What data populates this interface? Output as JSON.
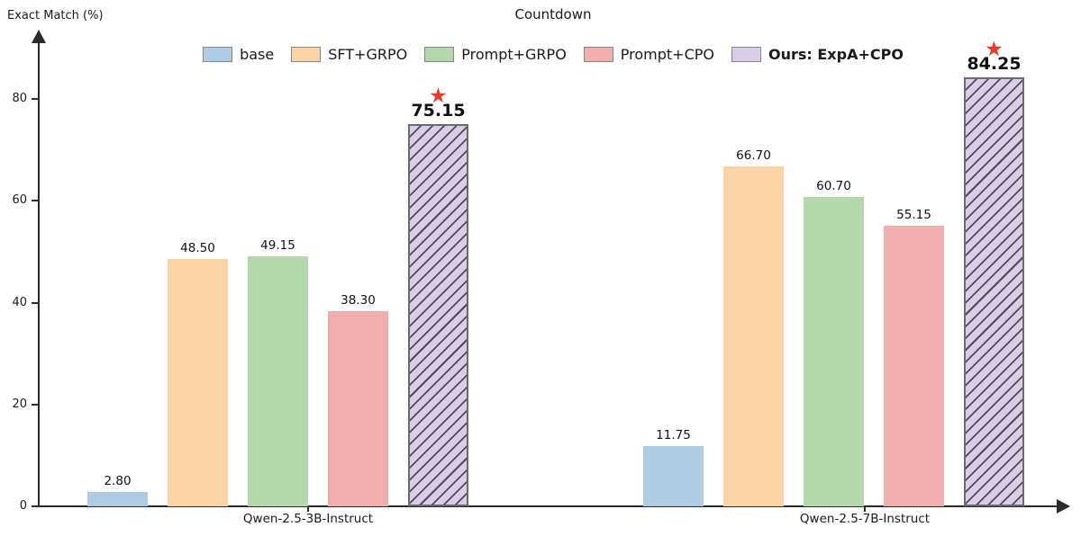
{
  "chart_data": {
    "type": "bar",
    "title": "Countdown",
    "ylabel": "Exact Match (%)",
    "categories": [
      "Qwen-2.5-3B-Instruct",
      "Qwen-2.5-7B-Instruct"
    ],
    "series": [
      {
        "name": "base",
        "color": "#aecde4",
        "values": [
          2.8,
          11.75
        ],
        "highlight": false
      },
      {
        "name": "SFT+GRPO",
        "color": "#fbd3a4",
        "values": [
          48.5,
          66.7
        ],
        "highlight": false
      },
      {
        "name": "Prompt+GRPO",
        "color": "#b2d8ab",
        "values": [
          49.15,
          60.7
        ],
        "highlight": false
      },
      {
        "name": "Prompt+CPO",
        "color": "#f0aeac",
        "values": [
          38.3,
          55.15
        ],
        "highlight": false
      },
      {
        "name": "Ours: ExpA+CPO",
        "color": "#d9cdea",
        "values": [
          75.15,
          84.25
        ],
        "highlight": true
      }
    ],
    "ylim": [
      0,
      90
    ],
    "yticks": [
      0,
      20,
      40,
      60,
      80
    ],
    "legend_position": "top",
    "grid": false,
    "value_label_decimals": 2,
    "highlight_color": "#e8392f",
    "star_marker": "★",
    "axis_color": "#2a2a2a"
  }
}
